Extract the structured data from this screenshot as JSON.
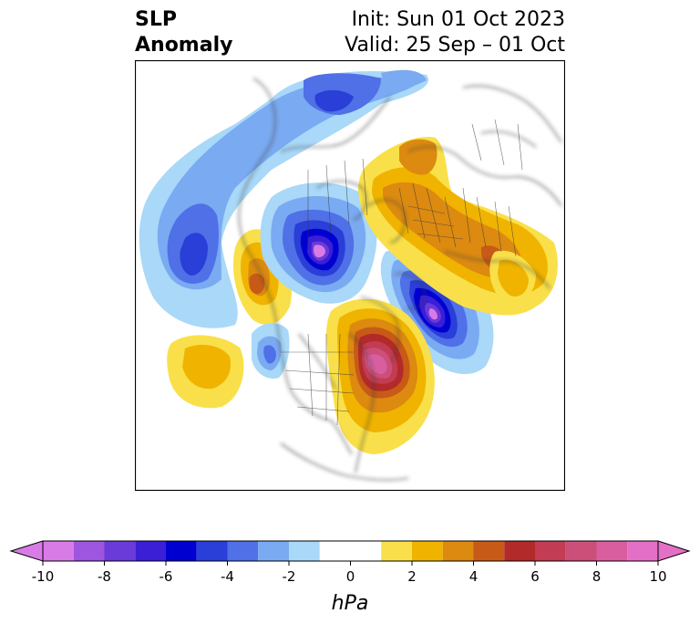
{
  "title": {
    "main_line1": "SLP",
    "main_line2": "Anomaly",
    "init": "Init: Sun 01 Oct 2023",
    "valid": "Valid: 25 Sep – 01 Oct"
  },
  "map": {
    "projection": "north-polar-stereographic",
    "region": "North America / North Atlantic / Europe"
  },
  "colorbar": {
    "unit_label": "hPa",
    "ticks": [
      "-10",
      "-8",
      "-6",
      "-4",
      "-2",
      "0",
      "2",
      "4",
      "6",
      "8",
      "10"
    ],
    "levels": [
      -10,
      -9,
      -8,
      -7,
      -6,
      -5,
      -4,
      -3,
      -2,
      -1,
      1,
      2,
      3,
      4,
      5,
      6,
      7,
      8,
      9,
      10
    ],
    "colors": [
      "#d97be6",
      "#9e55e0",
      "#6a3bd8",
      "#3a1fd6",
      "#0000d0",
      "#2a3ed8",
      "#4f70e6",
      "#7aaaf2",
      "#a9d8f8",
      "#ffffff",
      "#f9e04a",
      "#f0b400",
      "#dc8a10",
      "#c85a18",
      "#b22a2a",
      "#c23c54",
      "#cc4f7a",
      "#d85ea0",
      "#e46fc6"
    ],
    "extend": "both",
    "under_color": "#d97be6",
    "over_color": "#e46fc6"
  }
}
